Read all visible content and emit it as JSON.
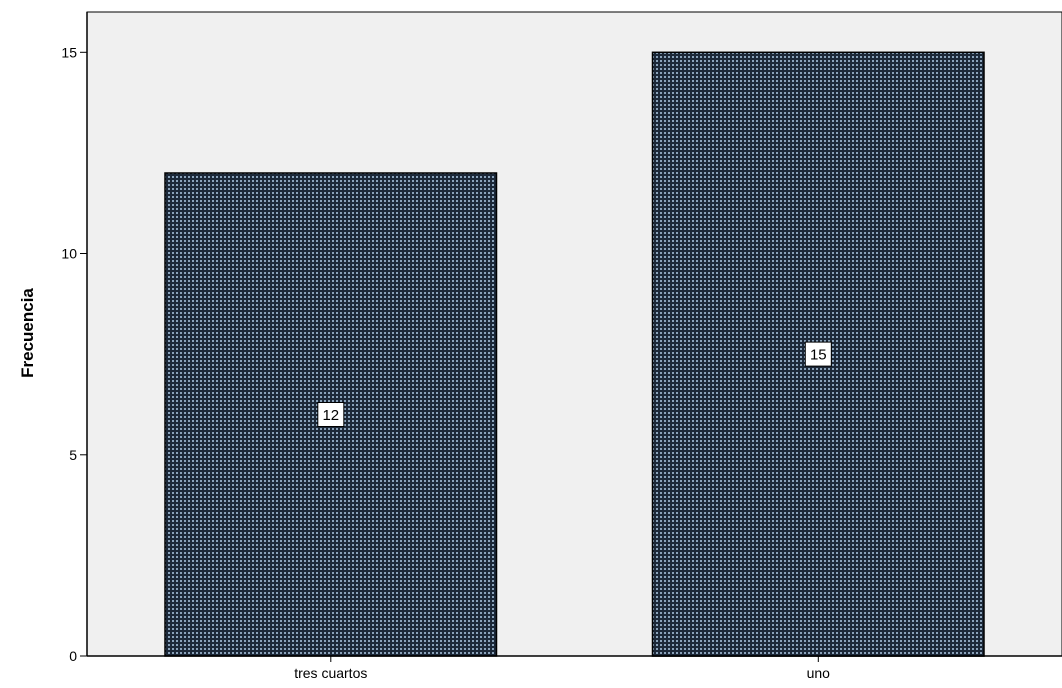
{
  "chart_data": {
    "type": "bar",
    "title": "",
    "xlabel": "",
    "ylabel": "Frecuencia",
    "categories": [
      "tres cuartos",
      "uno"
    ],
    "values": [
      12,
      15
    ],
    "data_labels": [
      "12",
      "15"
    ],
    "ylim": [
      0,
      16
    ],
    "yticks": [
      0,
      5,
      10,
      15
    ],
    "ytick_labels": [
      "0",
      "5",
      "10",
      "15"
    ],
    "grid": false,
    "legend": "none",
    "colors": {
      "plot_background": "#f0f0f0",
      "bar_fill_dark": "#1c2838",
      "bar_pattern_light": "#8aa2ba",
      "bar_outline": "#000000",
      "axis": "#000000"
    }
  }
}
